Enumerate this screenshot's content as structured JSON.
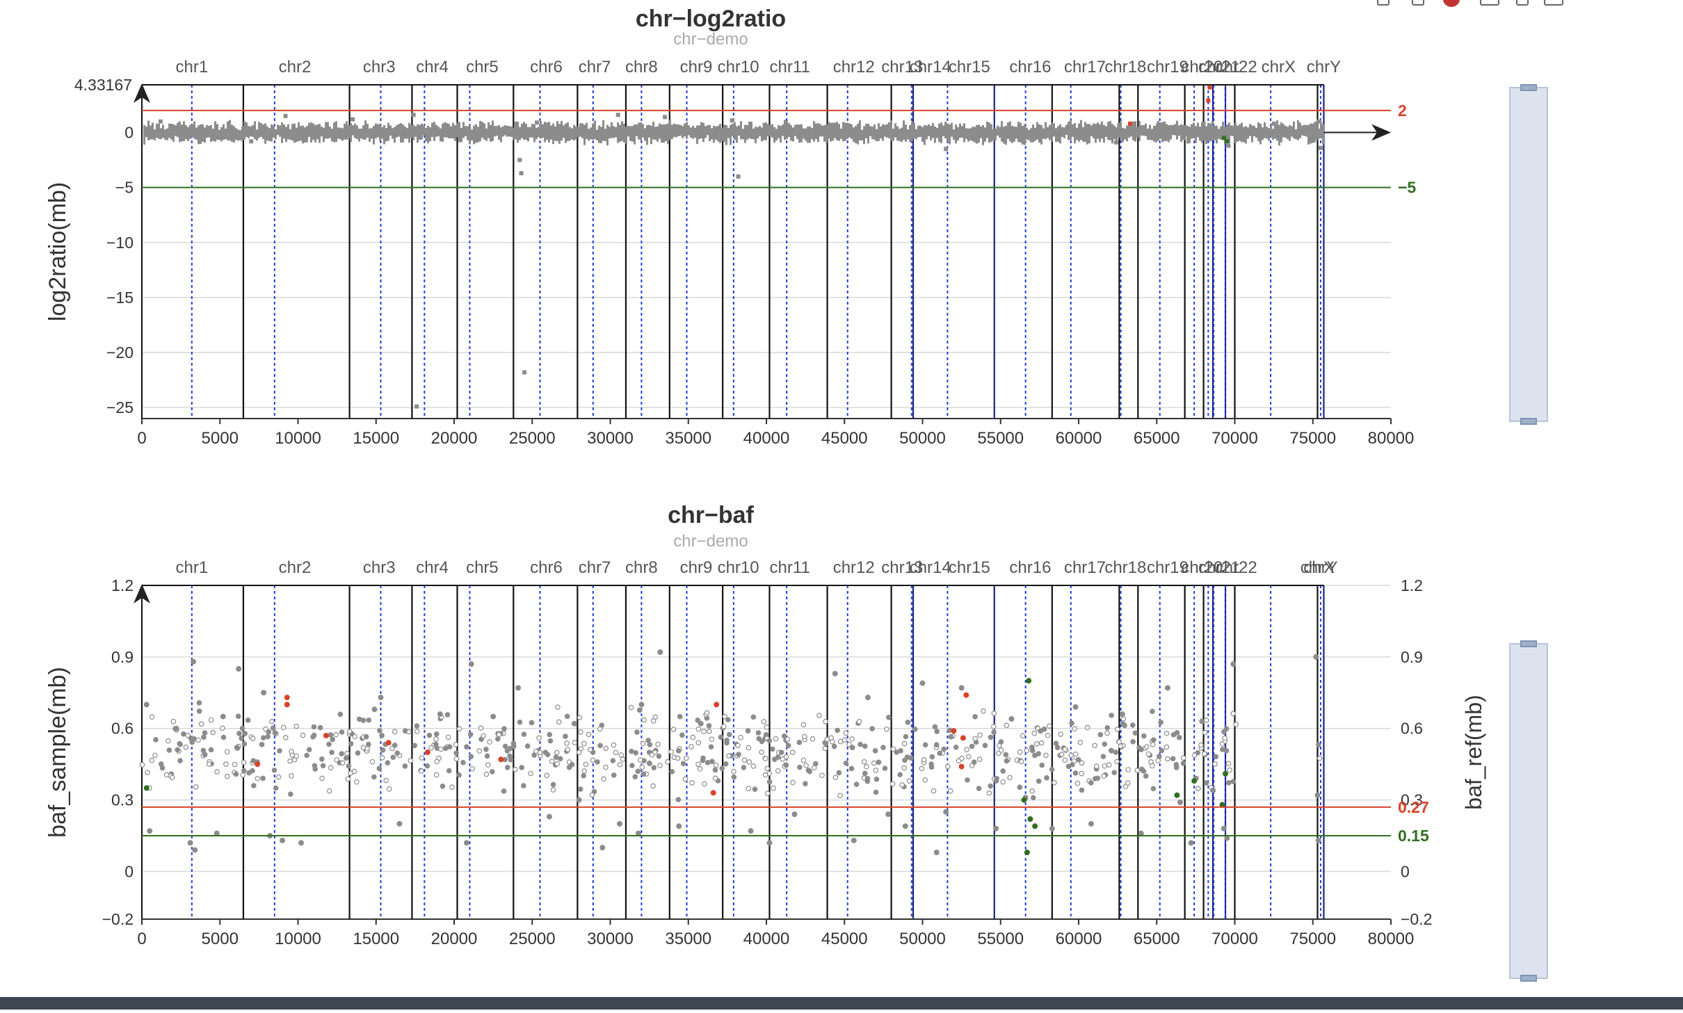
{
  "chart_data": [
    {
      "type": "scatter",
      "title": "chr−log2ratio",
      "subtitle": "chr−demo",
      "ylabel": "log2ratio(mb)",
      "xlabel": "",
      "xlim": [
        0,
        80000
      ],
      "ylim": [
        -26,
        4.33167
      ],
      "ymax_label": "4.33167",
      "x_ticks": [
        0,
        5000,
        10000,
        15000,
        20000,
        25000,
        30000,
        35000,
        40000,
        45000,
        50000,
        55000,
        60000,
        65000,
        70000,
        75000,
        80000
      ],
      "y_ticks": [
        0,
        -5,
        -10,
        -15,
        -20,
        -25
      ],
      "y_tick_labels": [
        "0",
        "−5",
        "−10",
        "−15",
        "−20",
        "−25"
      ],
      "grid": true,
      "thresholds": [
        {
          "value": 2,
          "label": "2",
          "color": "#d9432b"
        },
        {
          "value": -5,
          "label": "−5",
          "color": "#2f6f1f"
        }
      ],
      "chromosomes": [
        {
          "name": "chr1",
          "start": 0,
          "end": 6500,
          "centromere": 3200
        },
        {
          "name": "chr2",
          "start": 6500,
          "end": 13300,
          "centromere": 8500
        },
        {
          "name": "chr3",
          "start": 13300,
          "end": 17300,
          "centromere": 15300
        },
        {
          "name": "chr4",
          "start": 17300,
          "end": 20200,
          "centromere": 18100
        },
        {
          "name": "chr5",
          "start": 20200,
          "end": 23800,
          "centromere": 21000
        },
        {
          "name": "chr6",
          "start": 23800,
          "end": 27900,
          "centromere": 25500
        },
        {
          "name": "chr7",
          "start": 27900,
          "end": 31000,
          "centromere": 28900
        },
        {
          "name": "chr8",
          "start": 31000,
          "end": 33800,
          "centromere": 32000
        },
        {
          "name": "chr9",
          "start": 33800,
          "end": 37200,
          "centromere": 34900
        },
        {
          "name": "chr10",
          "start": 37200,
          "end": 40200,
          "centromere": 37900
        },
        {
          "name": "chr11",
          "start": 40200,
          "end": 43900,
          "centromere": 41300
        },
        {
          "name": "chr12",
          "start": 43900,
          "end": 48000,
          "centromere": 45200
        },
        {
          "name": "chr13",
          "start": 48000,
          "end": 49400,
          "centromere": 49300
        },
        {
          "name": "chr14",
          "start": 49400,
          "end": 54600,
          "centromere": 51600
        },
        {
          "name": "chr15",
          "start": 54600,
          "end": 58300,
          "centromere": 56600
        },
        {
          "name": "chr16",
          "start": 58300,
          "end": 62600,
          "centromere": 59500
        },
        {
          "name": "chr17",
          "start": 62600,
          "end": 63800,
          "centromere": 62700
        },
        {
          "name": "chr18",
          "start": 63800,
          "end": 66800,
          "centromere": 65200
        },
        {
          "name": "chr19",
          "start": 66800,
          "end": 68000,
          "centromere": 67400
        },
        {
          "name": "chr20",
          "start": 68000,
          "end": 68600,
          "centromere": 68300
        },
        {
          "name": "chr21",
          "start": 68600,
          "end": 69400,
          "centromere": 68650
        },
        {
          "name": "chr22",
          "start": 69400,
          "end": 70000,
          "centromere": 69400
        },
        {
          "name": "chrX",
          "start": 70000,
          "end": 75300,
          "centromere": 72300
        },
        {
          "name": "chrY",
          "start": 75300,
          "end": 75700,
          "centromere": 75500
        }
      ],
      "chrom_label_positions": [
        3200,
        9800,
        15200,
        18600,
        21800,
        25900,
        29000,
        32000,
        35500,
        38200,
        41500,
        45600,
        48700,
        50500,
        53000,
        56900,
        60400,
        63000,
        65700,
        67900,
        69000,
        70100,
        72800,
        75700
      ],
      "series": [
        {
          "name": "",
          "color": "#8c8c8c",
          "points": [
            [
              1200,
              1.0
            ],
            [
              7000,
              -0.8
            ],
            [
              9200,
              1.5
            ],
            [
              13500,
              1.2
            ],
            [
              17400,
              1.6
            ],
            [
              24000,
              0.8
            ],
            [
              24200,
              -2.5
            ],
            [
              24300,
              -3.7
            ],
            [
              25300,
              0.9
            ],
            [
              26600,
              -0.6
            ],
            [
              30500,
              1.6
            ],
            [
              33500,
              1.4
            ],
            [
              37800,
              1.1
            ],
            [
              38200,
              -4.0
            ],
            [
              39900,
              0.7
            ],
            [
              45000,
              0.6
            ],
            [
              51500,
              -1.5
            ],
            [
              57000,
              -0.7
            ],
            [
              62400,
              -0.9
            ],
            [
              62600,
              0.6
            ],
            [
              65100,
              0.7
            ],
            [
              66700,
              -0.5
            ],
            [
              68000,
              0.8
            ],
            [
              69600,
              -1.2
            ],
            [
              72500,
              0.8
            ],
            [
              74500,
              0.5
            ],
            [
              75500,
              -1.4
            ],
            [
              75400,
              1.0
            ],
            [
              24500,
              -21.8
            ],
            [
              17600,
              -24.9
            ]
          ]
        },
        {
          "name": "",
          "color": "#d9432b",
          "points": [
            [
              68300,
              2.9
            ],
            [
              68400,
              4.1
            ],
            [
              63300,
              0.8
            ]
          ]
        },
        {
          "name": "",
          "color": "#2f6f1f",
          "points": [
            [
              69300,
              -0.5
            ],
            [
              69500,
              -0.8
            ]
          ]
        }
      ]
    },
    {
      "type": "scatter",
      "title": "chr−baf",
      "subtitle": "chr−demo",
      "ylabel": "baf_sample(mb)",
      "ylabel_right": "baf_ref(mb)",
      "xlabel": "",
      "xlim": [
        0,
        80000
      ],
      "ylim": [
        -0.2,
        1.2
      ],
      "x_ticks": [
        0,
        5000,
        10000,
        15000,
        20000,
        25000,
        30000,
        35000,
        40000,
        45000,
        50000,
        55000,
        60000,
        65000,
        70000,
        75000,
        80000
      ],
      "y_ticks": [
        1.2,
        0.9,
        0.6,
        0.3,
        0,
        -0.2
      ],
      "y_tick_labels": [
        "1.2",
        "0.9",
        "0.6",
        "0.3",
        "0",
        "−0.2"
      ],
      "grid": true,
      "thresholds": [
        {
          "value": 0.27,
          "label": "0.27",
          "color": "#d9432b"
        },
        {
          "value": 0.15,
          "label": "0.15",
          "color": "#2f6f1f"
        }
      ],
      "chrom_label_positions": [
        3200,
        9800,
        15200,
        18600,
        21800,
        25900,
        29000,
        32000,
        35500,
        38200,
        41500,
        45600,
        48700,
        50500,
        53000,
        56900,
        60400,
        63000,
        65700,
        67900,
        69000,
        70100,
        75300,
        75500
      ],
      "series": [
        {
          "name": "",
          "color": "#8c8c8c",
          "points": [
            [
              300,
              0.7
            ],
            [
              500,
              0.17
            ],
            [
              2200,
              0.6
            ],
            [
              3100,
              0.12
            ],
            [
              3300,
              0.88
            ],
            [
              3400,
              0.09
            ],
            [
              4800,
              0.16
            ],
            [
              5200,
              0.65
            ],
            [
              6200,
              0.85
            ],
            [
              7800,
              0.75
            ],
            [
              8200,
              0.15
            ],
            [
              9000,
              0.13
            ],
            [
              10200,
              0.12
            ],
            [
              14900,
              0.68
            ],
            [
              15300,
              0.73
            ],
            [
              16500,
              0.2
            ],
            [
              19100,
              0.66
            ],
            [
              20800,
              0.12
            ],
            [
              21100,
              0.87
            ],
            [
              22500,
              0.65
            ],
            [
              24100,
              0.77
            ],
            [
              26100,
              0.23
            ],
            [
              27700,
              0.62
            ],
            [
              28000,
              0.3
            ],
            [
              29500,
              0.1
            ],
            [
              30600,
              0.2
            ],
            [
              31800,
              0.16
            ],
            [
              32000,
              0.7
            ],
            [
              33200,
              0.92
            ],
            [
              34400,
              0.19
            ],
            [
              35800,
              0.62
            ],
            [
              39000,
              0.17
            ],
            [
              40200,
              0.12
            ],
            [
              41800,
              0.24
            ],
            [
              44400,
              0.83
            ],
            [
              45600,
              0.13
            ],
            [
              46500,
              0.73
            ],
            [
              47800,
              0.24
            ],
            [
              48900,
              0.19
            ],
            [
              50000,
              0.79
            ],
            [
              50900,
              0.08
            ],
            [
              51500,
              0.25
            ],
            [
              52500,
              0.77
            ],
            [
              54700,
              0.18
            ],
            [
              55700,
              0.64
            ],
            [
              56600,
              0.31
            ],
            [
              58300,
              0.18
            ],
            [
              59800,
              0.69
            ],
            [
              60800,
              0.2
            ],
            [
              62800,
              0.66
            ],
            [
              64000,
              0.16
            ],
            [
              65700,
              0.77
            ],
            [
              66500,
              0.29
            ],
            [
              67200,
              0.12
            ],
            [
              67900,
              0.63
            ],
            [
              68600,
              0.34
            ],
            [
              69300,
              0.18
            ],
            [
              69500,
              0.14
            ],
            [
              69900,
              0.87
            ],
            [
              75200,
              0.9
            ],
            [
              75300,
              0.32
            ],
            [
              75350,
              0.13
            ]
          ]
        },
        {
          "name": "",
          "color": "#d9432b",
          "points": [
            [
              9300,
              0.73
            ],
            [
              9300,
              0.7
            ],
            [
              11800,
              0.57
            ],
            [
              15800,
              0.54
            ],
            [
              18300,
              0.5
            ],
            [
              23000,
              0.47
            ],
            [
              36800,
              0.7
            ],
            [
              36600,
              0.33
            ],
            [
              52000,
              0.59
            ],
            [
              52600,
              0.56
            ],
            [
              52800,
              0.74
            ],
            [
              52500,
              0.44
            ],
            [
              7400,
              0.45
            ]
          ]
        },
        {
          "name": "",
          "color": "#2f6f1f",
          "points": [
            [
              56800,
              0.8
            ],
            [
              56500,
              0.3
            ],
            [
              56900,
              0.22
            ],
            [
              57200,
              0.19
            ],
            [
              56700,
              0.08
            ],
            [
              66300,
              0.32
            ],
            [
              67400,
              0.38
            ],
            [
              69400,
              0.41
            ],
            [
              300,
              0.35
            ],
            [
              69200,
              0.28
            ]
          ]
        }
      ]
    }
  ],
  "toolbox": {
    "icons": [
      "restore-icon",
      "data-view-icon",
      "save-image-icon",
      "zoom-icon",
      "zoom-reset-icon",
      "brush-icon"
    ]
  }
}
